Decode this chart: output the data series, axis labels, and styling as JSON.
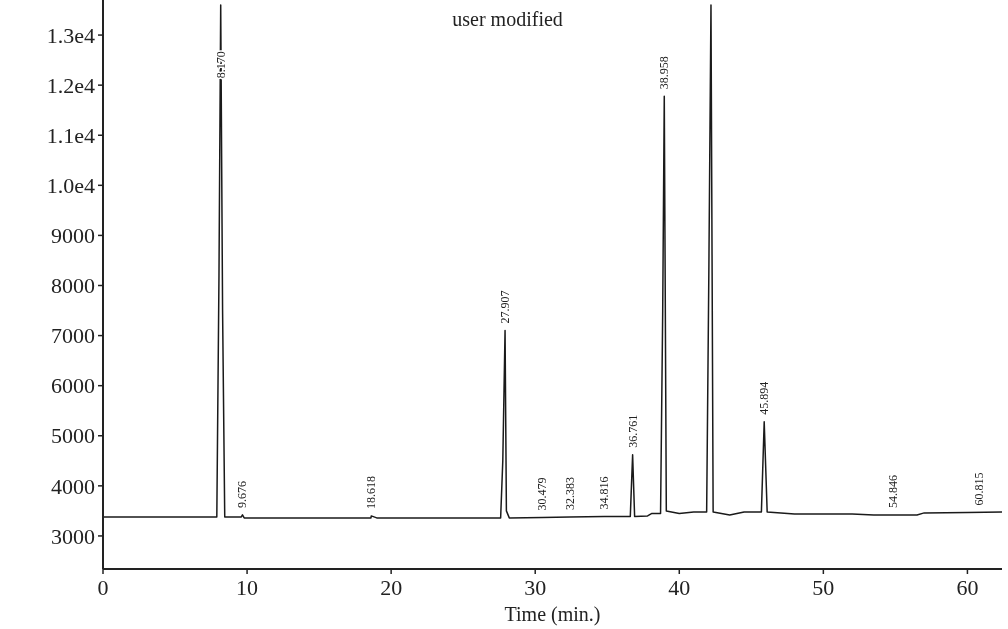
{
  "chart_data": {
    "type": "line",
    "xlabel": "Time (min.)",
    "annotations": [
      "user modified",
      {
        "text": "8.170",
        "x": 8.17,
        "y": 12000
      },
      {
        "text": "9.676",
        "x": 9.68,
        "y": 3420
      },
      {
        "text": "18.618",
        "x": 18.62,
        "y": 3400
      },
      {
        "text": "27.907",
        "x": 27.907,
        "y": 7100
      },
      {
        "text": "30.479",
        "x": 30.5,
        "y": 3370
      },
      {
        "text": "32.383",
        "x": 32.4,
        "y": 3380
      },
      {
        "text": "34.816",
        "x": 34.8,
        "y": 3390
      },
      {
        "text": "36.761",
        "x": 36.761,
        "y": 4620
      },
      {
        "text": "38.958",
        "x": 38.958,
        "y": 11780
      },
      {
        "text": "45.894",
        "x": 45.894,
        "y": 5280
      },
      {
        "text": "54.846",
        "x": 54.8,
        "y": 3420
      },
      {
        "text": "60.815",
        "x": 60.8,
        "y": 3470
      }
    ],
    "series": [
      {
        "color": "#1a1a1a",
        "x": [
          0,
          7.9,
          8.05,
          8.17,
          8.3,
          8.45,
          9.6,
          9.68,
          9.8,
          18.6,
          18.62,
          19.0,
          27.6,
          27.75,
          27.907,
          28.0,
          28.2,
          30.5,
          32.4,
          34.8,
          36.6,
          36.761,
          36.9,
          37.8,
          38.1,
          38.7,
          38.85,
          38.958,
          39.1,
          40,
          41,
          41.9,
          42.05,
          42.2,
          42.35,
          43.5,
          44.5,
          45.7,
          45.894,
          46.1,
          48,
          50,
          52,
          53.5,
          54.8,
          56.5,
          57,
          60,
          62.4
        ],
        "values": [
          3380,
          3380,
          8200,
          13600,
          7500,
          3380,
          3380,
          3420,
          3360,
          3360,
          3400,
          3360,
          3360,
          4500,
          7100,
          3500,
          3360,
          3370,
          3380,
          3390,
          3390,
          4620,
          3390,
          3400,
          3450,
          3450,
          7500,
          11780,
          3500,
          3450,
          3480,
          3480,
          8200,
          13600,
          3480,
          3420,
          3480,
          3480,
          5280,
          3480,
          3440,
          3440,
          3440,
          3420,
          3420,
          3420,
          3460,
          3470,
          3480
        ]
      }
    ],
    "xlim": [
      0,
      62.4
    ],
    "xticks": [
      0,
      10,
      20,
      30,
      40,
      50,
      60
    ],
    "ylim": [
      2340,
      13700
    ],
    "yticks": [
      3000,
      4000,
      5000,
      6000,
      7000,
      8000,
      9000,
      {
        "value": 10000,
        "label": "1.0e4"
      },
      {
        "value": 11000,
        "label": "1.1e4"
      },
      {
        "value": 12000,
        "label": "1.2e4"
      },
      {
        "value": 13000,
        "label": "1.3e4"
      }
    ],
    "grid": false,
    "marker": "none",
    "line_style": "solid"
  }
}
